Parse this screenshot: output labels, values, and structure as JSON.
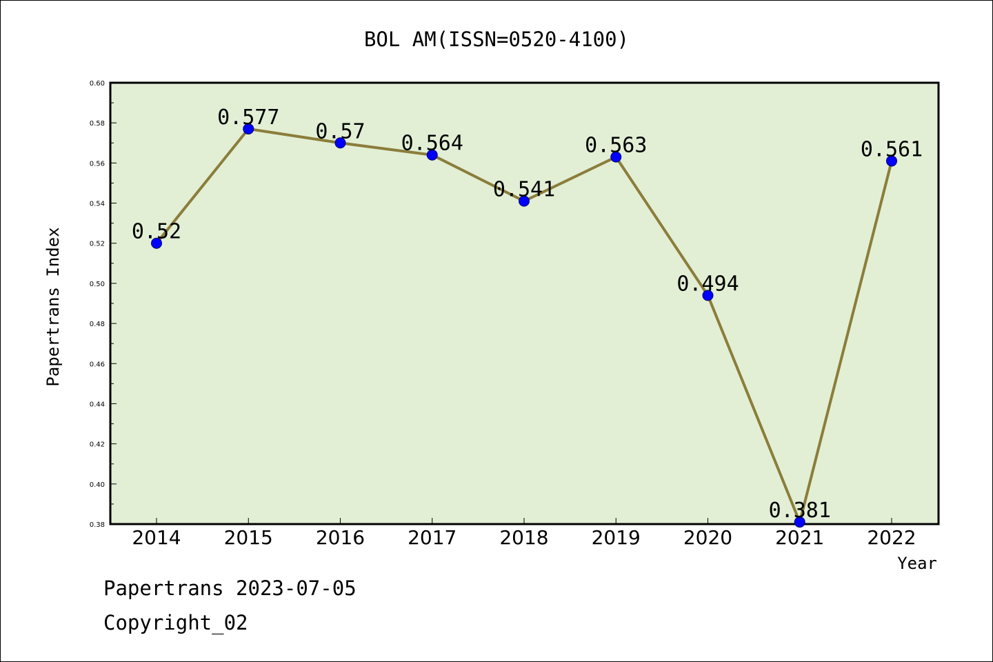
{
  "chart_data": {
    "type": "line",
    "title": "BOL AM(ISSN=0520-4100)",
    "xlabel": "Year",
    "ylabel": "Papertrans Index",
    "categories": [
      "2014",
      "2015",
      "2016",
      "2017",
      "2018",
      "2019",
      "2020",
      "2021",
      "2022"
    ],
    "series": [
      {
        "values": [
          0.52,
          0.577,
          0.57,
          0.564,
          0.541,
          0.563,
          0.494,
          0.381,
          0.561
        ],
        "labels": [
          "0.52",
          "0.577",
          "0.57",
          "0.564",
          "0.541",
          "0.563",
          "0.494",
          "0.381",
          "0.561"
        ],
        "line_color": "#8b7d3a",
        "marker_color": "#0000ff"
      }
    ],
    "ylim": [
      0.38,
      0.6
    ],
    "yticks": [
      "0.38",
      "0.40",
      "0.42",
      "0.44",
      "0.46",
      "0.48",
      "0.50",
      "0.52",
      "0.54",
      "0.56",
      "0.58",
      "0.60"
    ],
    "plot_background": "#e2efd5",
    "grid": false,
    "legend": "none"
  },
  "footer": {
    "line1": "Papertrans 2023-07-05",
    "line2": "Copyright_02"
  }
}
